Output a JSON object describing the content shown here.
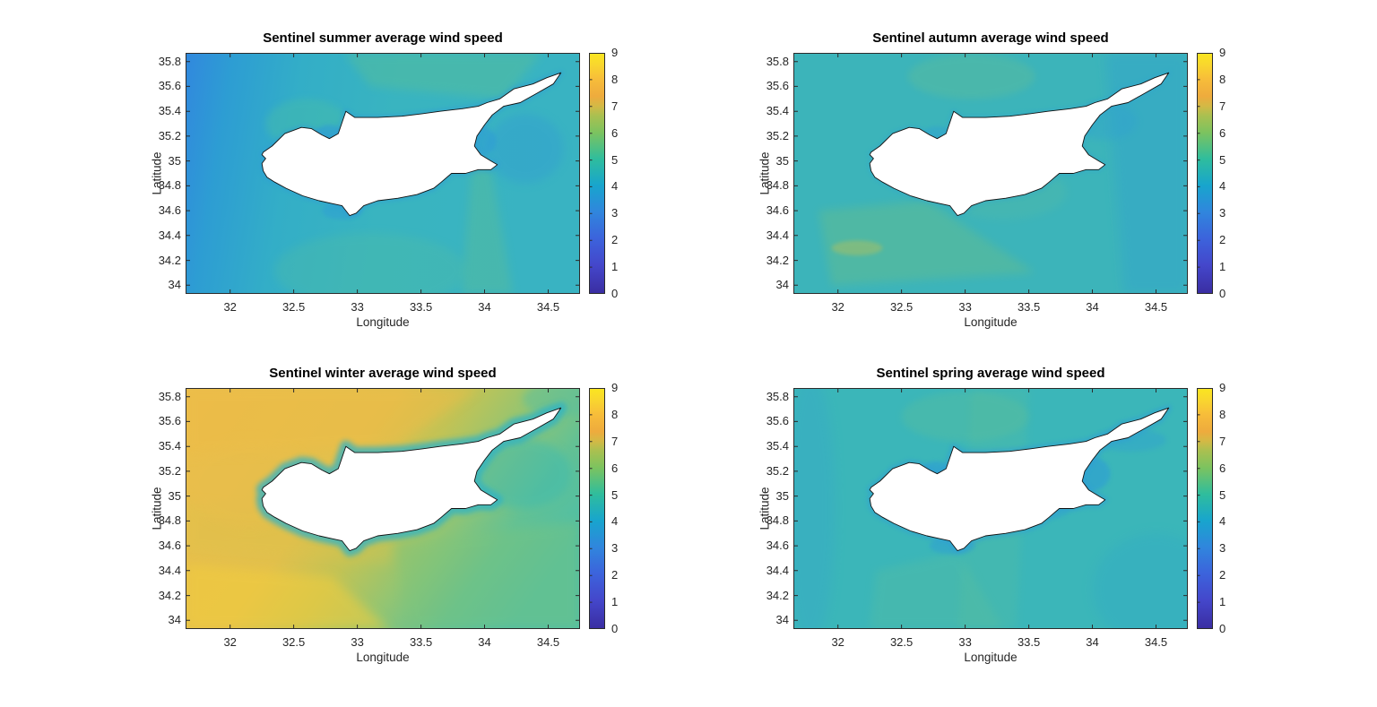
{
  "figure": {
    "background_color": "#ffffff",
    "axis_color": "#2b2b2b",
    "tick_text_color": "#262626",
    "title_color": "#000000"
  },
  "colormap": {
    "name": "parula",
    "stops": [
      [
        0.0,
        "#3a2da1"
      ],
      [
        0.12,
        "#4447cb"
      ],
      [
        0.23,
        "#3c63dc"
      ],
      [
        0.34,
        "#3086dd"
      ],
      [
        0.45,
        "#18a5cd"
      ],
      [
        0.56,
        "#2fbd9d"
      ],
      [
        0.67,
        "#7cc35f"
      ],
      [
        0.74,
        "#aac050"
      ],
      [
        0.78,
        "#d4b945"
      ],
      [
        0.82,
        "#eeab3d"
      ],
      [
        0.89,
        "#f7bd3a"
      ],
      [
        0.95,
        "#f9d62e"
      ],
      [
        1.0,
        "#fae71f"
      ]
    ]
  },
  "island_outline": [
    [
      32.26,
      35.07
    ],
    [
      32.33,
      35.12
    ],
    [
      32.43,
      35.22
    ],
    [
      32.56,
      35.27
    ],
    [
      32.64,
      35.26
    ],
    [
      32.72,
      35.21
    ],
    [
      32.78,
      35.18
    ],
    [
      32.85,
      35.22
    ],
    [
      32.91,
      35.4
    ],
    [
      32.98,
      35.35
    ],
    [
      33.16,
      35.35
    ],
    [
      33.35,
      35.36
    ],
    [
      33.51,
      35.38
    ],
    [
      33.65,
      35.4
    ],
    [
      33.82,
      35.42
    ],
    [
      33.95,
      35.44
    ],
    [
      34.02,
      35.47
    ],
    [
      34.12,
      35.5
    ],
    [
      34.23,
      35.58
    ],
    [
      34.38,
      35.62
    ],
    [
      34.49,
      35.67
    ],
    [
      34.6,
      35.71
    ],
    [
      34.54,
      35.62
    ],
    [
      34.42,
      35.55
    ],
    [
      34.28,
      35.47
    ],
    [
      34.15,
      35.44
    ],
    [
      34.06,
      35.37
    ],
    [
      34.0,
      35.29
    ],
    [
      33.94,
      35.2
    ],
    [
      33.92,
      35.12
    ],
    [
      33.97,
      35.05
    ],
    [
      34.05,
      35.0
    ],
    [
      34.1,
      34.97
    ],
    [
      34.05,
      34.93
    ],
    [
      33.95,
      34.93
    ],
    [
      33.85,
      34.9
    ],
    [
      33.74,
      34.9
    ],
    [
      33.66,
      34.83
    ],
    [
      33.6,
      34.78
    ],
    [
      33.47,
      34.73
    ],
    [
      33.32,
      34.7
    ],
    [
      33.16,
      34.68
    ],
    [
      33.05,
      34.64
    ],
    [
      32.99,
      34.58
    ],
    [
      32.94,
      34.56
    ],
    [
      32.91,
      34.6
    ],
    [
      32.88,
      34.64
    ],
    [
      32.79,
      34.66
    ],
    [
      32.7,
      34.68
    ],
    [
      32.57,
      34.72
    ],
    [
      32.44,
      34.78
    ],
    [
      32.35,
      34.83
    ],
    [
      32.29,
      34.87
    ],
    [
      32.26,
      34.92
    ],
    [
      32.25,
      34.98
    ],
    [
      32.28,
      35.02
    ],
    [
      32.25,
      35.05
    ]
  ],
  "chart_data": [
    {
      "type": "heatmap",
      "season": "summer",
      "title": "Sentinel summer average wind speed",
      "xlabel": "Longitude",
      "ylabel": "Latitude",
      "xlim": [
        31.65,
        34.75
      ],
      "ylim": [
        33.93,
        35.87
      ],
      "xticks": [
        32,
        32.5,
        33,
        33.5,
        34,
        34.5
      ],
      "yticks": [
        34,
        34.2,
        34.4,
        34.6,
        34.8,
        35,
        35.2,
        35.4,
        35.6,
        35.8
      ],
      "colorbar": {
        "min": 0,
        "max": 9,
        "ticks": [
          0,
          1,
          2,
          3,
          4,
          5,
          6,
          7,
          8,
          9
        ]
      },
      "observed_sea_values": {
        "open_sea": "4.0-4.5",
        "west_edge": "3.0-3.5",
        "green_swath_patches": "5.0-5.5",
        "coastal_bays": "3.0-3.5",
        "land": "masked white (Cyprus)"
      },
      "style": {
        "base": {
          "type": "linear",
          "dir": [
            0,
            0,
            1,
            0.1
          ],
          "stops": [
            [
              0,
              "#3188de"
            ],
            [
              0.12,
              "#2d9dd3"
            ],
            [
              0.3,
              "#33aec7"
            ],
            [
              0.55,
              "#39b4c0"
            ],
            [
              1,
              "#39b3c2"
            ]
          ]
        },
        "halo": {
          "color": "#2f9ad8",
          "width": 6,
          "opacity": 0.4,
          "blur": 2
        },
        "patches": [
          {
            "shape": "polygon",
            "points": [
              [
                32.9,
                35.87
              ],
              [
                34.45,
                35.87
              ],
              [
                34.15,
                35.5
              ],
              [
                33.1,
                35.6
              ]
            ],
            "color": "#5fc18f",
            "opacity": 0.38,
            "blur": 5
          },
          {
            "shape": "polygon",
            "points": [
              [
                33.82,
                33.93
              ],
              [
                34.22,
                33.93
              ],
              [
                34.05,
                34.95
              ],
              [
                33.9,
                35.0
              ]
            ],
            "color": "#66c187",
            "opacity": 0.32,
            "blur": 5
          },
          {
            "shape": "ellipse",
            "cx": 33.1,
            "cy": 34.12,
            "rx": 0.75,
            "ry": 0.3,
            "color": "#55c09c",
            "opacity": 0.28,
            "blur": 5
          },
          {
            "shape": "ellipse",
            "cx": 32.6,
            "cy": 35.3,
            "rx": 0.32,
            "ry": 0.2,
            "color": "#49bfa4",
            "opacity": 0.4,
            "blur": 4
          },
          {
            "shape": "ellipse",
            "cx": 34.32,
            "cy": 35.1,
            "rx": 0.3,
            "ry": 0.28,
            "color": "#2f92dc",
            "opacity": 0.28,
            "blur": 5
          },
          {
            "shape": "ellipse",
            "cx": 32.78,
            "cy": 35.19,
            "rx": 0.13,
            "ry": 0.1,
            "color": "#2c95dd",
            "opacity": 0.5,
            "blur": 2
          },
          {
            "shape": "ellipse",
            "cx": 33.96,
            "cy": 35.16,
            "rx": 0.13,
            "ry": 0.12,
            "color": "#2c95dd",
            "opacity": 0.4,
            "blur": 2
          },
          {
            "shape": "ellipse",
            "cx": 32.88,
            "cy": 34.6,
            "rx": 0.16,
            "ry": 0.07,
            "color": "#2c95dd",
            "opacity": 0.35,
            "blur": 2
          }
        ]
      }
    },
    {
      "type": "heatmap",
      "season": "autumn",
      "title": "Sentinel autumn average wind speed",
      "xlabel": "Longitude",
      "ylabel": "Latitude",
      "xlim": [
        31.65,
        34.75
      ],
      "ylim": [
        33.93,
        35.87
      ],
      "xticks": [
        32,
        32.5,
        33,
        33.5,
        34,
        34.5
      ],
      "yticks": [
        34,
        34.2,
        34.4,
        34.6,
        34.8,
        35,
        35.2,
        35.4,
        35.6,
        35.8
      ],
      "colorbar": {
        "min": 0,
        "max": 9,
        "ticks": [
          0,
          1,
          2,
          3,
          4,
          5,
          6,
          7,
          8,
          9
        ]
      },
      "observed_sea_values": {
        "open_sea": "4.0-4.5",
        "east_of_island": "3.5-4.0",
        "faint_swath_streaks": "~5",
        "land": "masked white (Cyprus)"
      },
      "style": {
        "base": {
          "type": "solid",
          "color": "#3cb4ba"
        },
        "halo": {
          "color": "#2fa4d2",
          "width": 5,
          "opacity": 0.35,
          "blur": 2
        },
        "patches": [
          {
            "shape": "polygon",
            "points": [
              [
                34.1,
                35.87
              ],
              [
                34.75,
                35.87
              ],
              [
                34.75,
                33.93
              ],
              [
                34.25,
                33.93
              ]
            ],
            "color": "#2f9fd2",
            "opacity": 0.35,
            "blur": 6
          },
          {
            "shape": "polygon",
            "points": [
              [
                31.85,
                34.6
              ],
              [
                32.7,
                34.68
              ],
              [
                33.55,
                34.1
              ],
              [
                31.95,
                34.0
              ]
            ],
            "color": "#85c468",
            "opacity": 0.26,
            "blur": 5
          },
          {
            "shape": "ellipse",
            "cx": 32.15,
            "cy": 34.3,
            "rx": 0.2,
            "ry": 0.06,
            "color": "#c9c24c",
            "opacity": 0.38,
            "blur": 2
          },
          {
            "shape": "ellipse",
            "cx": 33.05,
            "cy": 35.68,
            "rx": 0.5,
            "ry": 0.18,
            "color": "#6fc187",
            "opacity": 0.28,
            "blur": 4
          },
          {
            "shape": "ellipse",
            "cx": 33.3,
            "cy": 34.75,
            "rx": 0.5,
            "ry": 0.22,
            "color": "#66c094",
            "opacity": 0.2,
            "blur": 5
          },
          {
            "shape": "ellipse",
            "cx": 32.78,
            "cy": 35.19,
            "rx": 0.12,
            "ry": 0.09,
            "color": "#2f9ed6",
            "opacity": 0.4,
            "blur": 2
          },
          {
            "shape": "ellipse",
            "cx": 34.1,
            "cy": 35.32,
            "rx": 0.25,
            "ry": 0.15,
            "color": "#2f9ed6",
            "opacity": 0.3,
            "blur": 4
          }
        ]
      }
    },
    {
      "type": "heatmap",
      "season": "winter",
      "title": "Sentinel winter average wind speed",
      "xlabel": "Longitude",
      "ylabel": "Latitude",
      "xlim": [
        31.65,
        34.75
      ],
      "ylim": [
        33.93,
        35.87
      ],
      "xticks": [
        32,
        32.5,
        33,
        33.5,
        34,
        34.5
      ],
      "yticks": [
        34,
        34.2,
        34.4,
        34.6,
        34.8,
        35,
        35.2,
        35.4,
        35.6,
        35.8
      ],
      "colorbar": {
        "min": 0,
        "max": 9,
        "ticks": [
          0,
          1,
          2,
          3,
          4,
          5,
          6,
          7,
          8,
          9
        ]
      },
      "observed_sea_values": {
        "northwest": "7.0-7.5",
        "southwest_corner": "~8",
        "southeast": "5.5-6.0",
        "east_of_island": "~5",
        "nearshore_ring": "4.0-4.5",
        "land": "masked white (Cyprus)"
      },
      "style": {
        "base": {
          "type": "linear",
          "dir": [
            0,
            0.15,
            1,
            0.6
          ],
          "stops": [
            [
              0,
              "#ebbe4b"
            ],
            [
              0.4,
              "#e2c04c"
            ],
            [
              0.55,
              "#c2c355"
            ],
            [
              0.7,
              "#93c572"
            ],
            [
              0.85,
              "#63c194"
            ],
            [
              1,
              "#4fbfa6"
            ]
          ]
        },
        "halo": {
          "color": "#2fb2c6",
          "width": 13,
          "opacity": 0.75,
          "blur": 3
        },
        "patches": [
          {
            "shape": "polygon",
            "points": [
              [
                31.65,
                35.87
              ],
              [
                33.95,
                35.87
              ],
              [
                33.3,
                35.4
              ],
              [
                31.65,
                35.33
              ]
            ],
            "color": "#edbc47",
            "opacity": 0.5,
            "blur": 6
          },
          {
            "shape": "polygon",
            "points": [
              [
                31.65,
                34.45
              ],
              [
                32.8,
                34.35
              ],
              [
                33.25,
                33.93
              ],
              [
                31.65,
                33.93
              ]
            ],
            "color": "#f3cd3e",
            "opacity": 0.55,
            "blur": 6
          },
          {
            "shape": "polygon",
            "points": [
              [
                31.65,
                34.95
              ],
              [
                33.35,
                34.82
              ],
              [
                33.25,
                34.45
              ],
              [
                31.65,
                34.55
              ]
            ],
            "color": "#dcc24b",
            "opacity": 0.3,
            "blur": 6
          },
          {
            "shape": "polygon",
            "points": [
              [
                33.3,
                34.62
              ],
              [
                34.75,
                34.8
              ],
              [
                34.75,
                33.93
              ],
              [
                33.4,
                33.93
              ]
            ],
            "color": "#7ec478",
            "opacity": 0.4,
            "blur": 6
          },
          {
            "shape": "ellipse",
            "cx": 34.3,
            "cy": 35.18,
            "rx": 0.38,
            "ry": 0.28,
            "color": "#3ebbb0",
            "opacity": 0.5,
            "blur": 5
          },
          {
            "shape": "ellipse",
            "cx": 34.6,
            "cy": 35.78,
            "rx": 0.3,
            "ry": 0.14,
            "color": "#52bfa4",
            "opacity": 0.45,
            "blur": 4
          },
          {
            "shape": "ellipse",
            "cx": 32.15,
            "cy": 35.1,
            "rx": 0.5,
            "ry": 0.35,
            "color": "#eabd4b",
            "opacity": 0.35,
            "blur": 6
          }
        ]
      }
    },
    {
      "type": "heatmap",
      "season": "spring",
      "title": "Sentinel spring average wind speed",
      "xlabel": "Longitude",
      "ylabel": "Latitude",
      "xlim": [
        31.65,
        34.75
      ],
      "ylim": [
        33.93,
        35.87
      ],
      "xticks": [
        32,
        32.5,
        33,
        33.5,
        34,
        34.5
      ],
      "yticks": [
        34,
        34.2,
        34.4,
        34.6,
        34.8,
        35,
        35.2,
        35.4,
        35.6,
        35.8
      ],
      "colorbar": {
        "min": 0,
        "max": 9,
        "ticks": [
          0,
          1,
          2,
          3,
          4,
          5,
          6,
          7,
          8,
          9
        ]
      },
      "observed_sea_values": {
        "open_sea": "4.0-4.5",
        "green_swath_streaks": "~5",
        "coastal_bays": "3.0-3.5",
        "southeast": "~4",
        "land": "masked white (Cyprus)"
      },
      "style": {
        "base": {
          "type": "solid",
          "color": "#3bb6b9"
        },
        "halo": {
          "color": "#2d9cd8",
          "width": 7,
          "opacity": 0.45,
          "blur": 2
        },
        "patches": [
          {
            "shape": "polygon",
            "points": [
              [
                33.05,
                35.87
              ],
              [
                33.5,
                35.87
              ],
              [
                33.4,
                33.93
              ],
              [
                32.95,
                33.93
              ]
            ],
            "color": "#5fc098",
            "opacity": 0.24,
            "blur": 5
          },
          {
            "shape": "polygon",
            "points": [
              [
                32.25,
                33.93
              ],
              [
                33.3,
                33.93
              ],
              [
                32.95,
                34.55
              ],
              [
                32.3,
                34.4
              ]
            ],
            "color": "#64c194",
            "opacity": 0.26,
            "blur": 5
          },
          {
            "shape": "ellipse",
            "cx": 33.0,
            "cy": 35.64,
            "rx": 0.5,
            "ry": 0.2,
            "color": "#66c18f",
            "opacity": 0.28,
            "blur": 4
          },
          {
            "shape": "ellipse",
            "cx": 34.5,
            "cy": 34.25,
            "rx": 0.5,
            "ry": 0.45,
            "color": "#2fa6cb",
            "opacity": 0.28,
            "blur": 6
          },
          {
            "shape": "ellipse",
            "cx": 31.78,
            "cy": 34.9,
            "rx": 0.2,
            "ry": 1.1,
            "color": "#34a4cd",
            "opacity": 0.3,
            "blur": 6
          },
          {
            "shape": "ellipse",
            "cx": 33.98,
            "cy": 35.18,
            "rx": 0.16,
            "ry": 0.14,
            "color": "#2b99da",
            "opacity": 0.5,
            "blur": 2
          },
          {
            "shape": "ellipse",
            "cx": 32.77,
            "cy": 35.19,
            "rx": 0.12,
            "ry": 0.09,
            "color": "#2b99da",
            "opacity": 0.5,
            "blur": 2
          },
          {
            "shape": "ellipse",
            "cx": 32.9,
            "cy": 34.6,
            "rx": 0.18,
            "ry": 0.07,
            "color": "#2b99da",
            "opacity": 0.4,
            "blur": 2
          },
          {
            "shape": "ellipse",
            "cx": 33.7,
            "cy": 34.9,
            "rx": 0.12,
            "ry": 0.08,
            "color": "#2b99da",
            "opacity": 0.3,
            "blur": 2
          },
          {
            "shape": "ellipse",
            "cx": 34.3,
            "cy": 35.45,
            "rx": 0.28,
            "ry": 0.09,
            "color": "#2b99da",
            "opacity": 0.3,
            "blur": 3
          }
        ]
      }
    }
  ]
}
